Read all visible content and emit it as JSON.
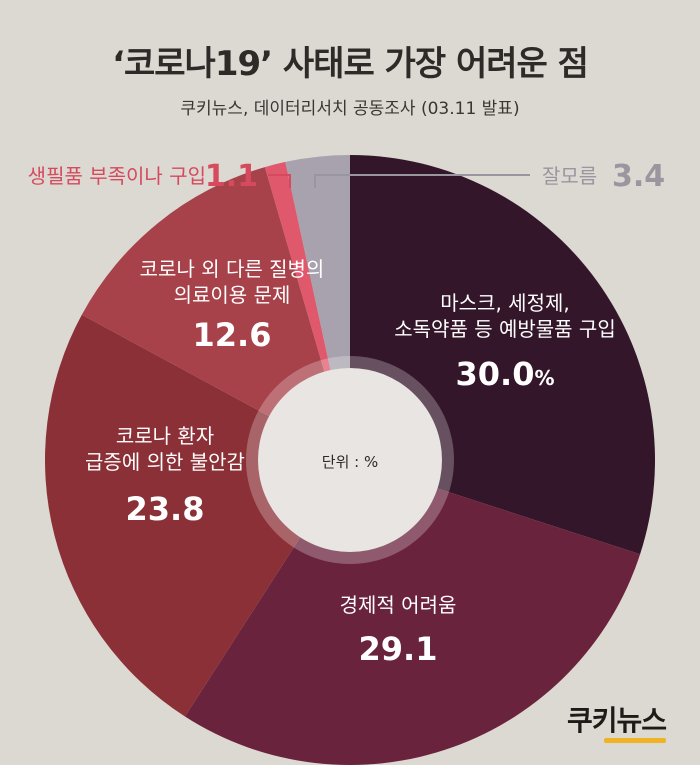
{
  "header": {
    "title": "‘코로나19’ 사태로 가장 어려운 점",
    "subtitle": "쿠키뉴스, 데이터리서치 공동조사 (03.11 발표)"
  },
  "chart_data": {
    "type": "pie",
    "unit_note": "단위 : %",
    "percent_sign": "%",
    "slices": [
      {
        "lines": [
          "마스크, 세정제,",
          "소독약품 등 예방물품 구입"
        ],
        "value": 30.0,
        "value_label": "30.0",
        "color": "#34162a"
      },
      {
        "lines": [
          "경제적 어려움"
        ],
        "value": 29.1,
        "value_label": "29.1",
        "color": "#6a233d"
      },
      {
        "lines": [
          "코로나 환자",
          "급증에 의한 불안감"
        ],
        "value": 23.8,
        "value_label": "23.8",
        "color": "#8b3036"
      },
      {
        "lines": [
          "코로나 외 다른 질병의",
          "의료이용 문제"
        ],
        "value": 12.6,
        "value_label": "12.6",
        "color": "#a7424a"
      },
      {
        "lines": [
          "생필품 부족이나 구입"
        ],
        "value": 1.1,
        "value_label": "1.1",
        "color": "#e0586b",
        "label_color": "#d64a5e"
      },
      {
        "lines": [
          "잘모름"
        ],
        "value": 3.4,
        "value_label": "3.4",
        "color": "#a7a2ad",
        "label_color": "#9a96a0"
      }
    ]
  },
  "logo": {
    "text": "쿠키뉴스"
  }
}
